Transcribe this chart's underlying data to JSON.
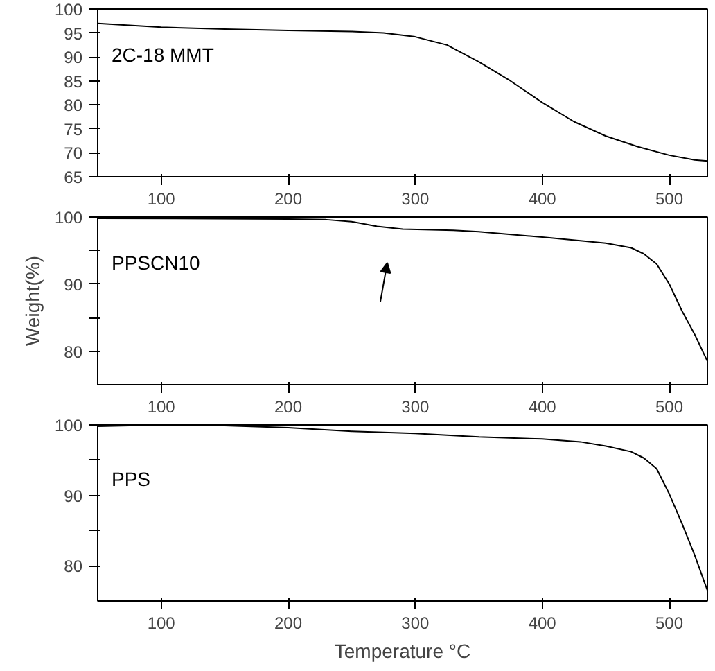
{
  "chart_data": [
    {
      "type": "line",
      "xlim": [
        50,
        530
      ],
      "xticks": [
        100,
        200,
        300,
        400,
        500
      ],
      "ylim": [
        65,
        100
      ],
      "yticks": [
        65,
        70,
        75,
        80,
        85,
        90,
        95,
        100
      ],
      "grid": false,
      "legend": "top left",
      "series": [
        {
          "name": "2C-18 MMT",
          "color": "#000000",
          "x": [
            50,
            100,
            150,
            200,
            250,
            275,
            300,
            325,
            350,
            375,
            400,
            425,
            450,
            475,
            500,
            520,
            530
          ],
          "values": [
            97,
            96.2,
            95.8,
            95.5,
            95.3,
            95,
            94.2,
            92.5,
            89,
            85,
            80.5,
            76.5,
            73.5,
            71.3,
            69.5,
            68.5,
            68.3
          ]
        }
      ]
    },
    {
      "type": "line",
      "xlim": [
        50,
        530
      ],
      "xticks": [
        100,
        200,
        300,
        400,
        500
      ],
      "ylim": [
        75,
        100
      ],
      "yticks": [
        {
          "value": 80,
          "label": "80"
        },
        {
          "value": 85,
          "label": null
        },
        {
          "value": 90,
          "label": "90"
        },
        {
          "value": 95,
          "label": null
        },
        {
          "value": 100,
          "label": "100"
        }
      ],
      "ylabel": "Weight(%)",
      "grid": false,
      "legend": "top left",
      "series": [
        {
          "name": "PPSCN10",
          "color": "#000000",
          "x": [
            50,
            200,
            230,
            250,
            270,
            290,
            330,
            350,
            400,
            450,
            470,
            480,
            490,
            500,
            510,
            520,
            530
          ],
          "values": [
            99.8,
            99.7,
            99.6,
            99.3,
            98.6,
            98.2,
            98,
            97.8,
            97,
            96.1,
            95.4,
            94.5,
            93,
            90,
            86,
            82.5,
            78.5
          ]
        }
      ]
    },
    {
      "type": "line",
      "xlim": [
        50,
        530
      ],
      "xticks": [
        100,
        200,
        300,
        400,
        500
      ],
      "ylim": [
        75,
        100
      ],
      "yticks": [
        {
          "value": 80,
          "label": "80"
        },
        {
          "value": 85,
          "label": null
        },
        {
          "value": 90,
          "label": "90"
        },
        {
          "value": 95,
          "label": null
        },
        {
          "value": 100,
          "label": "100"
        }
      ],
      "xlabel": "Temperature °C",
      "grid": false,
      "legend": "top left",
      "series": [
        {
          "name": "PPS",
          "color": "#000000",
          "x": [
            50,
            100,
            150,
            200,
            250,
            300,
            350,
            400,
            430,
            450,
            470,
            480,
            490,
            500,
            510,
            520,
            530
          ],
          "values": [
            99.8,
            100,
            99.9,
            99.6,
            99.1,
            98.8,
            98.3,
            98,
            97.6,
            97,
            96.2,
            95.3,
            93.8,
            90.2,
            86,
            81.5,
            76.5
          ]
        }
      ]
    }
  ]
}
